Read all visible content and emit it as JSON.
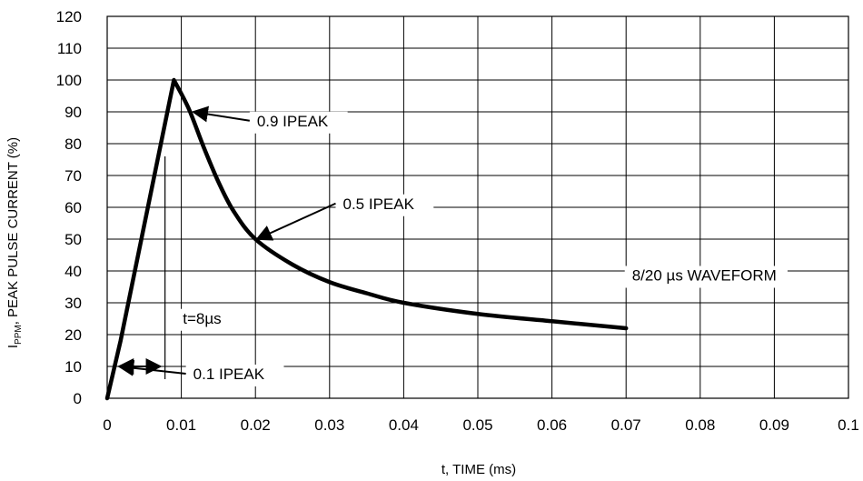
{
  "chart_data": {
    "type": "line",
    "title": "",
    "xlabel": "t, TIME (ms)",
    "ylabel_main": "I",
    "ylabel_sub": "PPM",
    "ylabel_rest": ", PEAK PULSE CURRENT (%)",
    "xlim": [
      0,
      0.1
    ],
    "ylim": [
      0,
      120
    ],
    "grid": true,
    "x_ticks": [
      "0",
      "0.01",
      "0.02",
      "0.03",
      "0.04",
      "0.05",
      "0.06",
      "0.07",
      "0.08",
      "0.09",
      "0.1"
    ],
    "y_ticks": [
      "0",
      "10",
      "20",
      "30",
      "40",
      "50",
      "60",
      "70",
      "80",
      "90",
      "100",
      "110",
      "120"
    ],
    "series": [
      {
        "name": "",
        "color": "#000000",
        "x": [
          0,
          0.0018,
          0.009,
          0.011,
          0.013,
          0.015,
          0.017,
          0.02,
          0.025,
          0.03,
          0.035,
          0.04,
          0.05,
          0.06,
          0.07
        ],
        "y": [
          0,
          18,
          100,
          91,
          79,
          68,
          59,
          50,
          42,
          36.5,
          33,
          30,
          26.5,
          24.2,
          22
        ]
      }
    ],
    "annotations": [
      {
        "id": "ann-09",
        "text": "0.9 IPEAK",
        "x": 0.0202,
        "y": 85.5,
        "arrow_to": [
          0.0116,
          90
        ]
      },
      {
        "id": "ann-05",
        "text": "0.5 IPEAK",
        "x": 0.0318,
        "y": 59.5,
        "arrow_to": [
          0.0202,
          50
        ]
      },
      {
        "id": "ann-01",
        "text": "0.1 IPEAK",
        "x": 0.0116,
        "y": 6,
        "arrow_to": [
          0.0016,
          10
        ]
      },
      {
        "id": "ann-t",
        "text": "t=8µs",
        "x": 0.0102,
        "y": 23.5
      },
      {
        "id": "ann-wave",
        "text": "8/20 µs WAVEFORM",
        "x": 0.0708,
        "y": 37
      }
    ],
    "duration_marker": {
      "x_start": 0.0016,
      "x_end": 0.0072,
      "y": 10,
      "tick_x": 0.0078,
      "tick_y_top": 76,
      "tick_y_bottom": 6
    }
  }
}
